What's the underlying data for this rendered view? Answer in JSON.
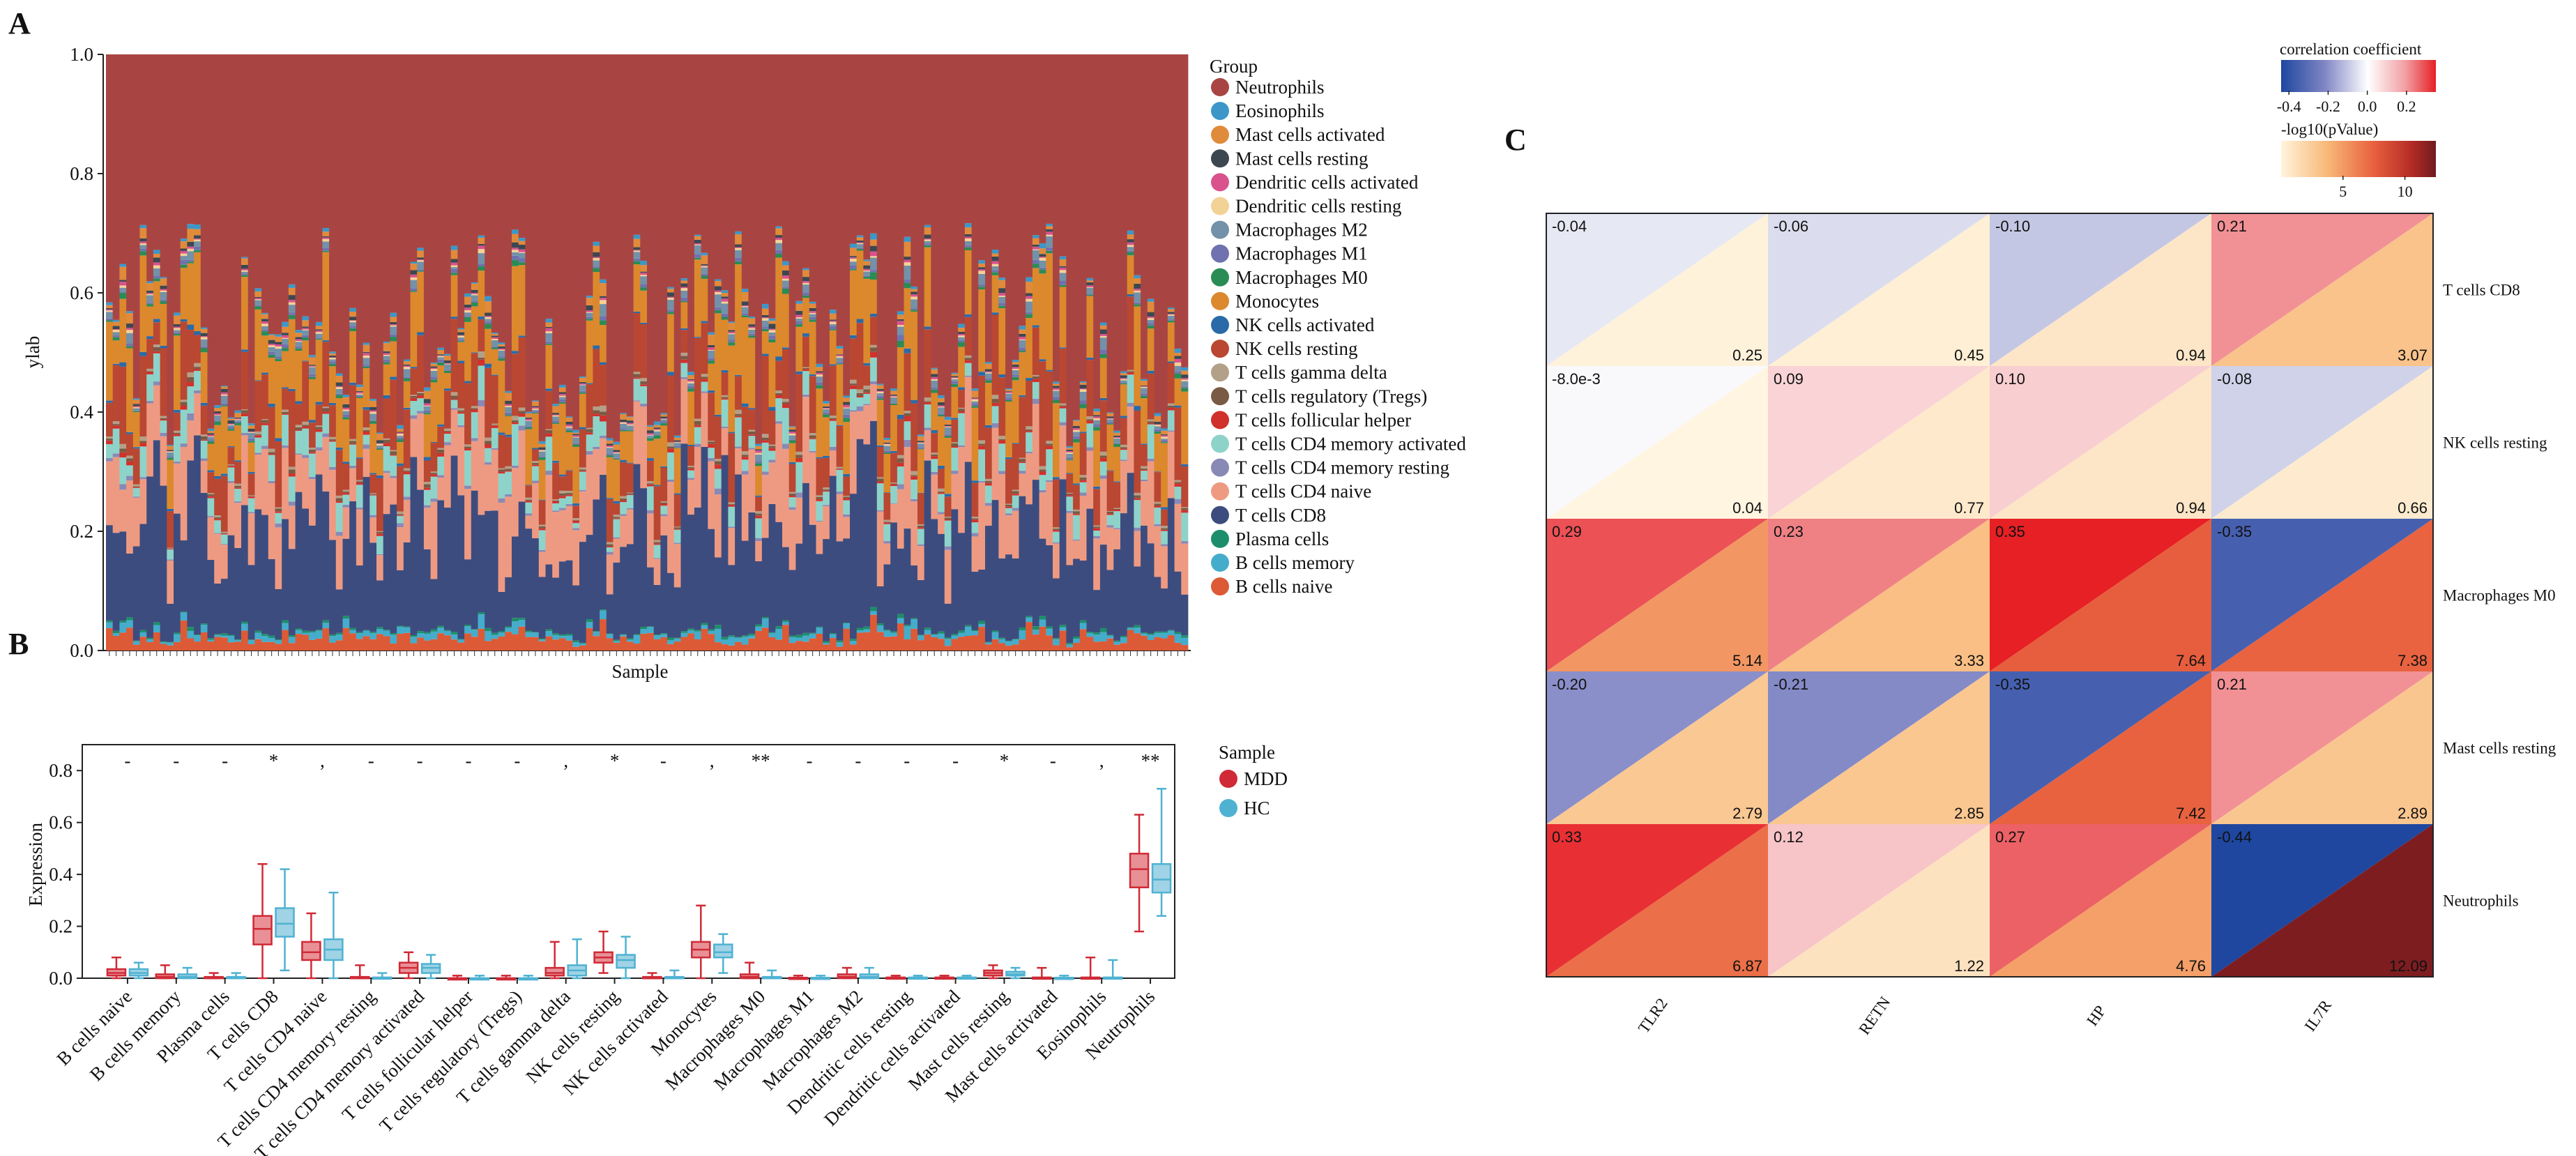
{
  "panel_letters": {
    "a": "A",
    "b": "B",
    "c": "C"
  },
  "chart_data": [
    {
      "panel": "A",
      "type": "bar",
      "subtype": "stacked-100",
      "xlabel": "Sample",
      "ylabel": "ylab",
      "ylim": [
        0,
        1.0
      ],
      "yticks": [
        "0.0",
        "0.2",
        "0.4",
        "0.6",
        "0.8",
        "1.0"
      ],
      "n_samples": 160,
      "legend_title": "Group",
      "legend_position": "right",
      "series": [
        {
          "name": "Neutrophils",
          "color": "#A84543",
          "approx_mean_fraction": 0.38
        },
        {
          "name": "Eosinophils",
          "color": "#3C97C8",
          "approx_mean_fraction": 0.005
        },
        {
          "name": "Mast cells activated",
          "color": "#E08A3B",
          "approx_mean_fraction": 0.01
        },
        {
          "name": "Mast cells resting",
          "color": "#3D4751",
          "approx_mean_fraction": 0.005
        },
        {
          "name": "Dendritic cells activated",
          "color": "#D9528E",
          "approx_mean_fraction": 0.003
        },
        {
          "name": "Dendritic cells resting",
          "color": "#F3D296",
          "approx_mean_fraction": 0.003
        },
        {
          "name": "Macrophages M2",
          "color": "#7391A8",
          "approx_mean_fraction": 0.01
        },
        {
          "name": "Macrophages M1",
          "color": "#6F72AE",
          "approx_mean_fraction": 0.004
        },
        {
          "name": "Macrophages M0",
          "color": "#2A8C55",
          "approx_mean_fraction": 0.005
        },
        {
          "name": "Monocytes",
          "color": "#DC882D",
          "approx_mean_fraction": 0.1
        },
        {
          "name": "NK cells activated",
          "color": "#2A6AA8",
          "approx_mean_fraction": 0.004
        },
        {
          "name": "NK cells resting",
          "color": "#B94732",
          "approx_mean_fraction": 0.08
        },
        {
          "name": "T cells gamma delta",
          "color": "#B3A088",
          "approx_mean_fraction": 0.004
        },
        {
          "name": "T cells regulatory (Tregs)",
          "color": "#7A5A44",
          "approx_mean_fraction": 0.004
        },
        {
          "name": "T cells follicular helper",
          "color": "#D0312D",
          "approx_mean_fraction": 0.004
        },
        {
          "name": "T cells CD4 memory activated",
          "color": "#8ED3C9",
          "approx_mean_fraction": 0.035
        },
        {
          "name": "T cells CD4 memory resting",
          "color": "#8989B5",
          "approx_mean_fraction": 0.005
        },
        {
          "name": "T cells CD4 naive",
          "color": "#EE9A82",
          "approx_mean_fraction": 0.1
        },
        {
          "name": "T cells CD8",
          "color": "#3D4C7E",
          "approx_mean_fraction": 0.2
        },
        {
          "name": "Plasma cells",
          "color": "#1C8E6B",
          "approx_mean_fraction": 0.003
        },
        {
          "name": "B cells memory",
          "color": "#45ACCB",
          "approx_mean_fraction": 0.01
        },
        {
          "name": "B cells naive",
          "color": "#DD5A36",
          "approx_mean_fraction": 0.025
        }
      ]
    },
    {
      "panel": "B",
      "type": "box",
      "xlabel": "",
      "ylabel": "Expression",
      "ylim": [
        0,
        0.9
      ],
      "yticks": [
        "0.0",
        "0.2",
        "0.4",
        "0.6",
        "0.8"
      ],
      "legend_title": "Sample",
      "legend_position": "right",
      "groups": [
        {
          "name": "MDD",
          "color": "#CF2A36"
        },
        {
          "name": "HC",
          "color": "#4FB2D2"
        }
      ],
      "categories": [
        {
          "name": "B cells naive",
          "sig": "-",
          "MDD": [
            0.0,
            0.01,
            0.02,
            0.035,
            0.08
          ],
          "HC": [
            0.0,
            0.01,
            0.02,
            0.035,
            0.06
          ]
        },
        {
          "name": "B cells memory",
          "sig": "-",
          "MDD": [
            0.0,
            0.0,
            0.005,
            0.015,
            0.05
          ],
          "HC": [
            0.0,
            0.0,
            0.005,
            0.015,
            0.04
          ]
        },
        {
          "name": "Plasma cells",
          "sig": "-",
          "MDD": [
            0.0,
            0.0,
            0.002,
            0.005,
            0.02
          ],
          "HC": [
            0.0,
            0.0,
            0.002,
            0.005,
            0.02
          ]
        },
        {
          "name": "T cells CD8",
          "sig": "*",
          "MDD": [
            0.0,
            0.13,
            0.19,
            0.24,
            0.44
          ],
          "HC": [
            0.03,
            0.16,
            0.21,
            0.27,
            0.42
          ]
        },
        {
          "name": "T cells CD4 naive",
          "sig": ",",
          "MDD": [
            0.0,
            0.07,
            0.1,
            0.14,
            0.25
          ],
          "HC": [
            0.0,
            0.07,
            0.11,
            0.15,
            0.33
          ]
        },
        {
          "name": "T cells CD4 memory resting",
          "sig": "-",
          "MDD": [
            0.0,
            0.0,
            0.0,
            0.005,
            0.05
          ],
          "HC": [
            0.0,
            0.0,
            0.0,
            0.003,
            0.02
          ]
        },
        {
          "name": "T cells CD4 memory activated",
          "sig": "-",
          "MDD": [
            0.0,
            0.02,
            0.04,
            0.06,
            0.1
          ],
          "HC": [
            0.0,
            0.02,
            0.04,
            0.055,
            0.09
          ]
        },
        {
          "name": "T cells follicular helper",
          "sig": "-",
          "MDD": [
            0.0,
            0.0,
            0.0,
            0.0,
            0.01
          ],
          "HC": [
            0.0,
            0.0,
            0.0,
            0.0,
            0.01
          ]
        },
        {
          "name": "T cells regulatory (Tregs)",
          "sig": "-",
          "MDD": [
            0.0,
            0.0,
            0.0,
            0.0,
            0.01
          ],
          "HC": [
            0.0,
            0.0,
            0.0,
            0.0,
            0.01
          ]
        },
        {
          "name": "T cells gamma delta",
          "sig": ",",
          "MDD": [
            0.0,
            0.01,
            0.02,
            0.04,
            0.14
          ],
          "HC": [
            0.0,
            0.01,
            0.03,
            0.05,
            0.15
          ]
        },
        {
          "name": "NK cells resting",
          "sig": "*",
          "MDD": [
            0.02,
            0.06,
            0.08,
            0.1,
            0.18
          ],
          "HC": [
            0.0,
            0.04,
            0.07,
            0.09,
            0.16
          ]
        },
        {
          "name": "NK cells activated",
          "sig": "-",
          "MDD": [
            0.0,
            0.0,
            0.0,
            0.005,
            0.02
          ],
          "HC": [
            0.0,
            0.0,
            0.0,
            0.005,
            0.03
          ]
        },
        {
          "name": "Monocytes",
          "sig": ",",
          "MDD": [
            0.0,
            0.08,
            0.11,
            0.14,
            0.28
          ],
          "HC": [
            0.02,
            0.08,
            0.1,
            0.13,
            0.17
          ]
        },
        {
          "name": "Macrophages M0",
          "sig": "**",
          "MDD": [
            0.0,
            0.0,
            0.005,
            0.015,
            0.06
          ],
          "HC": [
            0.0,
            0.0,
            0.0,
            0.005,
            0.03
          ]
        },
        {
          "name": "Macrophages M1",
          "sig": "-",
          "MDD": [
            0.0,
            0.0,
            0.0,
            0.002,
            0.01
          ],
          "HC": [
            0.0,
            0.0,
            0.0,
            0.002,
            0.01
          ]
        },
        {
          "name": "Macrophages M2",
          "sig": "-",
          "MDD": [
            0.0,
            0.0,
            0.005,
            0.015,
            0.04
          ],
          "HC": [
            0.0,
            0.0,
            0.005,
            0.015,
            0.04
          ]
        },
        {
          "name": "Dendritic cells resting",
          "sig": "-",
          "MDD": [
            0.0,
            0.0,
            0.0,
            0.003,
            0.01
          ],
          "HC": [
            0.0,
            0.0,
            0.0,
            0.003,
            0.01
          ]
        },
        {
          "name": "Dendritic cells activated",
          "sig": "-",
          "MDD": [
            0.0,
            0.0,
            0.0,
            0.003,
            0.01
          ],
          "HC": [
            0.0,
            0.0,
            0.0,
            0.003,
            0.01
          ]
        },
        {
          "name": "Mast cells resting",
          "sig": "*",
          "MDD": [
            0.0,
            0.01,
            0.02,
            0.03,
            0.05
          ],
          "HC": [
            0.0,
            0.01,
            0.015,
            0.025,
            0.04
          ]
        },
        {
          "name": "Mast cells activated",
          "sig": "-",
          "MDD": [
            0.0,
            0.0,
            0.0,
            0.003,
            0.04
          ],
          "HC": [
            0.0,
            0.0,
            0.0,
            0.002,
            0.01
          ]
        },
        {
          "name": "Eosinophils",
          "sig": ",",
          "MDD": [
            0.0,
            0.0,
            0.0,
            0.003,
            0.08
          ],
          "HC": [
            0.0,
            0.0,
            0.0,
            0.003,
            0.07
          ]
        },
        {
          "name": "Neutrophils",
          "sig": "**",
          "MDD": [
            0.18,
            0.35,
            0.42,
            0.48,
            0.63
          ],
          "HC": [
            0.24,
            0.33,
            0.38,
            0.44,
            0.73
          ]
        }
      ]
    },
    {
      "panel": "C",
      "type": "heatmap",
      "subtype": "split-triangle correlation",
      "columns": [
        "TLR2",
        "RETN",
        "HP",
        "IL7R"
      ],
      "rows": [
        "T cells CD8",
        "NK cells resting",
        "Macrophages M0",
        "Mast cells resting",
        "Neutrophils"
      ],
      "correlation": [
        [
          "-0.04",
          "-0.06",
          "-0.10",
          "0.21"
        ],
        [
          "-8.0e-3",
          "0.09",
          "0.10",
          "-0.08"
        ],
        [
          "0.29",
          "0.23",
          "0.35",
          "-0.35"
        ],
        [
          "-0.20",
          "-0.21",
          "-0.35",
          "0.21"
        ],
        [
          "0.33",
          "0.12",
          "0.27",
          "-0.44"
        ]
      ],
      "neglog10_p": [
        [
          "0.25",
          "0.45",
          "0.94",
          "3.07"
        ],
        [
          "0.04",
          "0.77",
          "0.94",
          "0.66"
        ],
        [
          "5.14",
          "3.33",
          "7.64",
          "7.38"
        ],
        [
          "2.79",
          "2.85",
          "7.42",
          "2.89"
        ],
        [
          "6.87",
          "1.22",
          "4.76",
          "12.09"
        ]
      ],
      "legend_corr": {
        "title": "correlation coefficient",
        "ticks": [
          "-0.4",
          "-0.2",
          "0.0",
          "0.2"
        ],
        "range": [
          -0.44,
          0.35
        ]
      },
      "legend_p": {
        "title": "-log10(pValue)",
        "ticks": [
          "5",
          "10"
        ],
        "range": [
          0,
          12.5
        ]
      }
    }
  ]
}
